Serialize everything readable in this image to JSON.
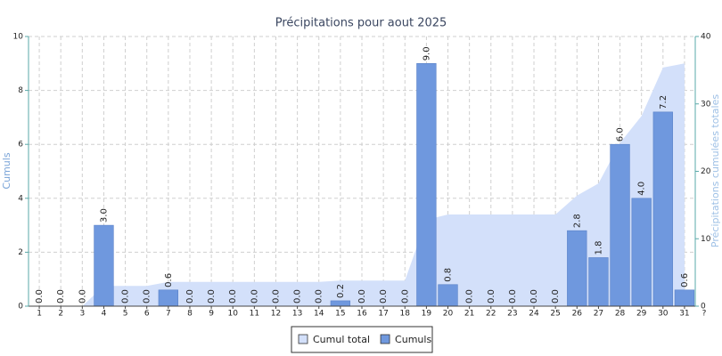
{
  "chart_data": {
    "type": "bar",
    "title": "Précipitations pour aout 2025",
    "y_label": "Cumuls",
    "y2_label": "Précipitations cumulées totales",
    "categories": [
      "1",
      "2",
      "3",
      "4",
      "5",
      "6",
      "7",
      "8",
      "9",
      "10",
      "11",
      "12",
      "13",
      "14",
      "15",
      "16",
      "17",
      "18",
      "19",
      "20",
      "21",
      "22",
      "23",
      "24",
      "25",
      "26",
      "27",
      "28",
      "29",
      "30",
      "31"
    ],
    "x_end_label": "?",
    "series": [
      {
        "name": "Cumul total",
        "type": "area",
        "axis": "y2",
        "color": "#d3e0fa",
        "values": [
          0,
          0,
          0,
          3,
          3,
          3,
          3.6,
          3.6,
          3.6,
          3.6,
          3.6,
          3.6,
          3.6,
          3.6,
          3.8,
          3.8,
          3.8,
          3.8,
          12.8,
          13.6,
          13.6,
          13.6,
          13.6,
          13.6,
          13.6,
          16.4,
          18.2,
          24.2,
          28.2,
          35.4,
          36.0
        ]
      },
      {
        "name": "Cumuls",
        "type": "bar",
        "color": "#6f98de",
        "values": [
          0,
          0,
          0,
          3,
          0,
          0,
          0.6,
          0,
          0,
          0,
          0,
          0,
          0,
          0,
          0.2,
          0,
          0,
          0,
          9,
          0.8,
          0,
          0,
          0,
          0,
          0,
          2.8,
          1.8,
          6,
          4,
          7.2,
          0.6
        ],
        "value_labels": [
          "0.0",
          "0.0",
          "0.0",
          "3.0",
          "0.0",
          "0.0",
          "0.6",
          "0.0",
          "0.0",
          "0.0",
          "0.0",
          "0.0",
          "0.0",
          "0.0",
          "0.2",
          "0.0",
          "0.0",
          "0.0",
          "9.0",
          "0.8",
          "0.0",
          "0.0",
          "0.0",
          "0.0",
          "0.0",
          "2.8",
          "1.8",
          "6.0",
          "4.0",
          "7.2",
          "0.6"
        ]
      }
    ],
    "ylim": [
      0,
      10
    ],
    "yticks": [
      0,
      2,
      4,
      6,
      8,
      10
    ],
    "y2lim": [
      0,
      40
    ],
    "y2ticks": [
      0,
      10,
      20,
      30,
      40
    ],
    "grid": true,
    "legend": "bottom"
  }
}
